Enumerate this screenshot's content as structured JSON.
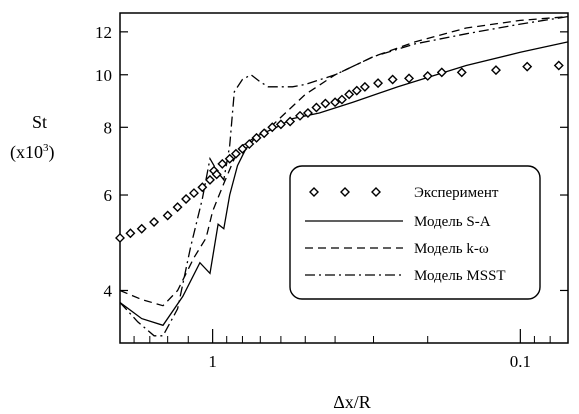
{
  "chart_data": {
    "type": "line",
    "title": "",
    "xlabel": "Δx/R",
    "ylabel_main": "St",
    "ylabel_unit_prefix": "(x10",
    "ylabel_unit_exp": "3",
    "ylabel_unit_suffix": ")",
    "x_scale": "log",
    "x_direction": "decreasing-right",
    "y_scale": "log",
    "xlim": [
      2.0,
      0.07
    ],
    "ylim": [
      3.2,
      13.0
    ],
    "x_ticks": [
      {
        "value": 1,
        "label": "1"
      },
      {
        "value": 0.1,
        "label": "0.1"
      }
    ],
    "y_ticks": [
      {
        "value": 4,
        "label": "4"
      },
      {
        "value": 6,
        "label": "6"
      },
      {
        "value": 8,
        "label": "8"
      },
      {
        "value": 10,
        "label": "10"
      },
      {
        "value": 12,
        "label": "12"
      }
    ],
    "legend_position": "lower-right",
    "series": [
      {
        "name": "Эксперимент",
        "style": "markers-diamond",
        "x": [
          2.0,
          1.85,
          1.7,
          1.55,
          1.4,
          1.3,
          1.22,
          1.15,
          1.08,
          1.02,
          0.99,
          0.97,
          0.93,
          0.88,
          0.84,
          0.8,
          0.76,
          0.72,
          0.68,
          0.64,
          0.6,
          0.56,
          0.52,
          0.49,
          0.46,
          0.43,
          0.4,
          0.38,
          0.36,
          0.34,
          0.32,
          0.29,
          0.26,
          0.23,
          0.2,
          0.18,
          0.155,
          0.12,
          0.095,
          0.075
        ],
        "y": [
          5.0,
          5.1,
          5.2,
          5.35,
          5.5,
          5.7,
          5.9,
          6.05,
          6.2,
          6.4,
          6.65,
          6.55,
          6.85,
          7.0,
          7.15,
          7.3,
          7.45,
          7.65,
          7.8,
          8.0,
          8.1,
          8.2,
          8.4,
          8.5,
          8.7,
          8.85,
          8.9,
          9.0,
          9.2,
          9.35,
          9.5,
          9.65,
          9.8,
          9.85,
          9.95,
          10.1,
          10.1,
          10.2,
          10.35,
          10.4
        ]
      },
      {
        "name": "Модель S-A",
        "style": "solid",
        "x": [
          2.0,
          1.7,
          1.45,
          1.25,
          1.1,
          1.02,
          0.96,
          0.92,
          0.88,
          0.83,
          0.78,
          0.72,
          0.62,
          0.55,
          0.45,
          0.35,
          0.25,
          0.15,
          0.1,
          0.07
        ],
        "y": [
          3.8,
          3.55,
          3.45,
          3.9,
          4.5,
          4.3,
          5.3,
          5.2,
          6.0,
          6.8,
          7.3,
          7.7,
          8.0,
          8.3,
          8.5,
          8.9,
          9.5,
          10.4,
          11.0,
          11.5
        ]
      },
      {
        "name": "Модель k-ω",
        "style": "dashed",
        "x": [
          2.0,
          1.7,
          1.45,
          1.3,
          1.15,
          1.05,
          1.0,
          0.92,
          0.85,
          0.8,
          0.72,
          0.65,
          0.58,
          0.5,
          0.4,
          0.3,
          0.22,
          0.15,
          0.1,
          0.07
        ],
        "y": [
          4.0,
          3.85,
          3.75,
          4.0,
          4.6,
          5.0,
          5.6,
          6.3,
          7.0,
          7.4,
          7.7,
          8.0,
          8.5,
          9.2,
          10.0,
          10.8,
          11.5,
          12.2,
          12.6,
          12.8
        ]
      },
      {
        "name": "Модель MSST",
        "style": "dash-dot",
        "x": [
          2.0,
          1.75,
          1.55,
          1.45,
          1.3,
          1.18,
          1.08,
          1.02,
          0.96,
          0.92,
          0.88,
          0.85,
          0.8,
          0.75,
          0.7,
          0.66,
          0.6,
          0.55,
          0.5,
          0.4,
          0.3,
          0.22,
          0.15,
          0.1,
          0.07
        ],
        "y": [
          3.8,
          3.5,
          3.3,
          3.3,
          3.7,
          4.8,
          5.9,
          7.0,
          6.6,
          6.4,
          7.4,
          9.3,
          9.8,
          10.0,
          9.7,
          9.5,
          9.5,
          9.5,
          9.6,
          10.0,
          10.8,
          11.4,
          11.9,
          12.4,
          12.8
        ]
      }
    ]
  }
}
